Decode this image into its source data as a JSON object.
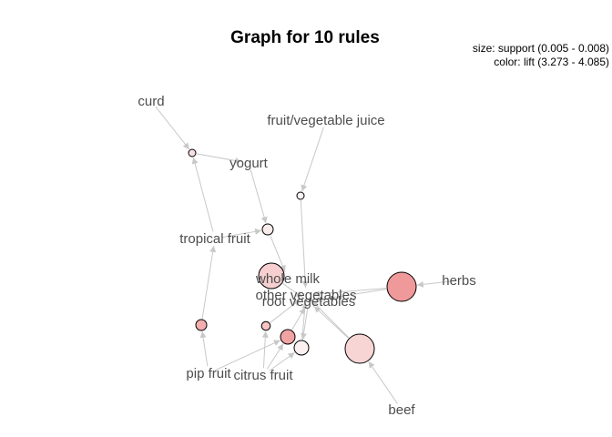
{
  "title": "Graph for 10 rules",
  "legend": {
    "size_text": "size: support (0.005 - 0.008)",
    "color_text": "color: lift (3.273 - 4.085)"
  },
  "colors": {
    "edge": "#c8c8c8",
    "label": "#4d4d4d",
    "node_stroke": "#000000",
    "lift_low": "#fbf4f4",
    "lift_high": "#f0999a"
  },
  "items": [
    {
      "id": "curd",
      "label": "curd"
    },
    {
      "id": "fruit_vegetable_juice",
      "label": "fruit/vegetable juice"
    },
    {
      "id": "yogurt",
      "label": "yogurt"
    },
    {
      "id": "tropical_fruit",
      "label": "tropical fruit"
    },
    {
      "id": "whole_milk",
      "label": "whole milk"
    },
    {
      "id": "other_vegetables",
      "label": "other vegetables"
    },
    {
      "id": "root_vegetables",
      "label": "root vegetables"
    },
    {
      "id": "herbs",
      "label": "herbs"
    },
    {
      "id": "pip_fruit",
      "label": "pip fruit"
    },
    {
      "id": "citrus_fruit",
      "label": "citrus fruit"
    },
    {
      "id": "beef",
      "label": "beef"
    }
  ],
  "rules": [
    {
      "id": "r1",
      "support": 0.005,
      "lift": 3.45
    },
    {
      "id": "r2",
      "support": 0.005,
      "lift": 3.273
    },
    {
      "id": "r3",
      "support": 0.0055,
      "lift": 3.35
    },
    {
      "id": "r4",
      "support": 0.0075,
      "lift": 3.6
    },
    {
      "id": "r5",
      "support": 0.008,
      "lift": 4.085
    },
    {
      "id": "r6",
      "support": 0.0055,
      "lift": 3.9
    },
    {
      "id": "r7",
      "support": 0.0052,
      "lift": 3.7
    },
    {
      "id": "r8",
      "support": 0.006,
      "lift": 4.0
    },
    {
      "id": "r9",
      "support": 0.006,
      "lift": 3.3
    },
    {
      "id": "r10",
      "support": 0.008,
      "lift": 3.55
    }
  ],
  "edges": [
    {
      "from": "curd",
      "to": "r1"
    },
    {
      "from": "r1",
      "to": "yogurt"
    },
    {
      "from": "fruit_vegetable_juice",
      "to": "r2"
    },
    {
      "from": "r2",
      "to": "other_vegetables"
    },
    {
      "from": "tropical_fruit",
      "to": "r1"
    },
    {
      "from": "yogurt",
      "to": "r3"
    },
    {
      "from": "r3",
      "to": "whole_milk"
    },
    {
      "from": "tropical_fruit",
      "to": "r3"
    },
    {
      "from": "whole_milk",
      "to": "r4"
    },
    {
      "from": "r4",
      "to": "root_vegetables"
    },
    {
      "from": "herbs",
      "to": "r5"
    },
    {
      "from": "r5",
      "to": "other_vegetables"
    },
    {
      "from": "r5",
      "to": "root_vegetables"
    },
    {
      "from": "pip_fruit",
      "to": "r6"
    },
    {
      "from": "r6",
      "to": "tropical_fruit"
    },
    {
      "from": "citrus_fruit",
      "to": "r7"
    },
    {
      "from": "r7",
      "to": "other_vegetables"
    },
    {
      "from": "citrus_fruit",
      "to": "r8"
    },
    {
      "from": "r8",
      "to": "root_vegetables"
    },
    {
      "from": "pip_fruit",
      "to": "r8"
    },
    {
      "from": "root_vegetables",
      "to": "r9"
    },
    {
      "from": "r9",
      "to": "other_vegetables"
    },
    {
      "from": "citrus_fruit",
      "to": "r9"
    },
    {
      "from": "beef",
      "to": "r10"
    },
    {
      "from": "r10",
      "to": "root_vegetables"
    },
    {
      "from": "r10",
      "to": "other_vegetables"
    }
  ]
}
